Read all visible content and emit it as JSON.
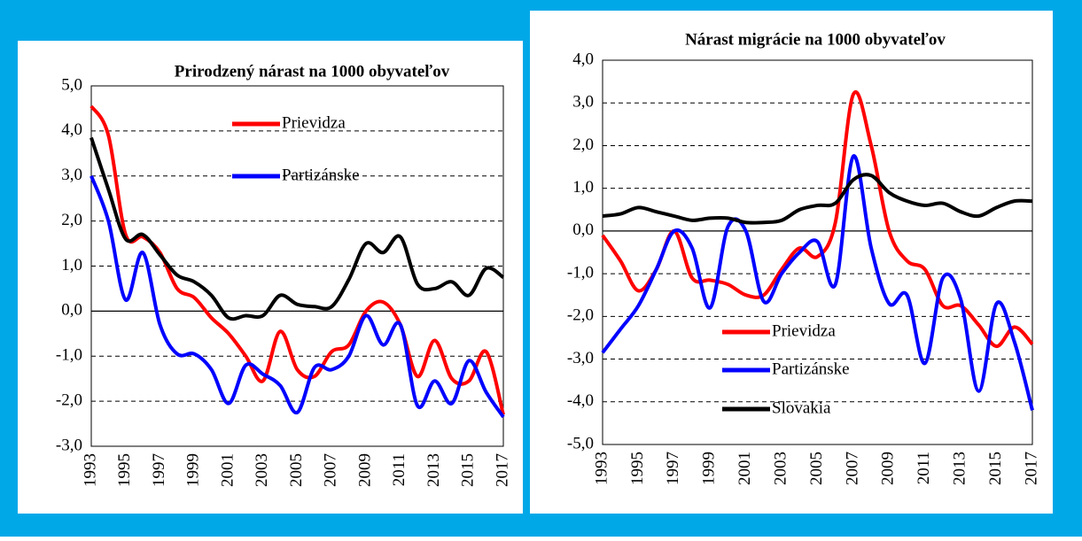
{
  "chart_data": [
    {
      "type": "line",
      "title": "Prirodzený nárast na 1000 obyvateľov",
      "categories": [
        "1993",
        null,
        "1995",
        null,
        "1997",
        null,
        "1999",
        null,
        "2001",
        null,
        "2003",
        null,
        "2005",
        null,
        "2007",
        null,
        "2009",
        null,
        "2011",
        null,
        "2013",
        null,
        "2015",
        null,
        "2017"
      ],
      "series": [
        {
          "name": "Prievidza",
          "color": "#ff0000",
          "values": [
            4.55,
            3.9,
            1.7,
            1.65,
            1.3,
            0.5,
            0.3,
            -0.15,
            -0.5,
            -1.0,
            -1.55,
            -0.45,
            -1.3,
            -1.45,
            -0.9,
            -0.75,
            0.0,
            0.2,
            -0.3,
            -1.45,
            -0.65,
            -1.5,
            -1.55,
            -0.9,
            -2.3
          ]
        },
        {
          "name": "Partizánske",
          "color": "#0000ff",
          "values": [
            3.0,
            2.0,
            0.25,
            1.3,
            -0.3,
            -0.95,
            -0.95,
            -1.3,
            -2.05,
            -1.2,
            -1.4,
            -1.65,
            -2.25,
            -1.25,
            -1.3,
            -1.0,
            -0.1,
            -0.75,
            -0.3,
            -2.1,
            -1.55,
            -2.05,
            -1.1,
            -1.8,
            -2.35
          ]
        },
        {
          "color": "#000000",
          "values": [
            3.85,
            2.7,
            1.6,
            1.7,
            1.25,
            0.8,
            0.65,
            0.35,
            -0.15,
            -0.1,
            -0.1,
            0.35,
            0.15,
            0.1,
            0.1,
            0.7,
            1.5,
            1.3,
            1.65,
            0.6,
            0.5,
            0.65,
            0.35,
            0.95,
            0.75
          ]
        }
      ],
      "ylim": [
        -3,
        5
      ],
      "yticks": [
        {
          "value": -3,
          "label": "-3,0"
        },
        {
          "value": -2,
          "label": "-2,0"
        },
        {
          "value": -1,
          "label": "-1,0"
        },
        {
          "value": 0,
          "label": "0,0"
        },
        {
          "value": 1,
          "label": "1,0"
        },
        {
          "value": 2,
          "label": "2,0"
        },
        {
          "value": 3,
          "label": "3,0"
        },
        {
          "value": 4,
          "label": "4,0"
        },
        {
          "value": 5,
          "label": "5,0"
        }
      ],
      "grid": true
    },
    {
      "type": "line",
      "title": "Nárast migrácie na 1000 obyvateľov",
      "categories": [
        "1993",
        null,
        "1995",
        null,
        "1997",
        null,
        "1999",
        null,
        "2001",
        null,
        "2003",
        null,
        "2005",
        null,
        "2007",
        null,
        "2009",
        null,
        "2011",
        null,
        "2013",
        null,
        "2015",
        null,
        "2017"
      ],
      "series": [
        {
          "name": "Prievidza",
          "color": "#ff0000",
          "values": [
            -0.1,
            -0.7,
            -1.4,
            -0.9,
            0.0,
            -1.1,
            -1.15,
            -1.25,
            -1.5,
            -1.5,
            -0.9,
            -0.4,
            -0.6,
            0.2,
            3.2,
            2.0,
            0.0,
            -0.7,
            -0.9,
            -1.75,
            -1.75,
            -2.2,
            -2.7,
            -2.25,
            -2.65
          ]
        },
        {
          "name": "Partizánske",
          "color": "#0000ff",
          "values": [
            -2.85,
            -2.3,
            -1.75,
            -0.9,
            0.0,
            -0.4,
            -1.8,
            0.1,
            0.0,
            -1.65,
            -1.0,
            -0.5,
            -0.25,
            -1.25,
            1.75,
            -0.4,
            -1.7,
            -1.5,
            -3.1,
            -1.1,
            -1.6,
            -3.75,
            -1.7,
            -2.6,
            -4.2
          ]
        },
        {
          "name": "Slovakia",
          "color": "#000000",
          "values": [
            0.35,
            0.4,
            0.55,
            0.45,
            0.35,
            0.25,
            0.3,
            0.3,
            0.2,
            0.2,
            0.25,
            0.5,
            0.6,
            0.65,
            1.2,
            1.3,
            0.9,
            0.7,
            0.6,
            0.65,
            0.45,
            0.35,
            0.55,
            0.7,
            0.7
          ]
        }
      ],
      "ylim": [
        -5,
        4
      ],
      "yticks": [
        {
          "value": -5,
          "label": "-5,0"
        },
        {
          "value": -4,
          "label": "-4,0"
        },
        {
          "value": -3,
          "label": "-3,0"
        },
        {
          "value": -2,
          "label": "-2,0"
        },
        {
          "value": -1,
          "label": "-1,0"
        },
        {
          "value": 0,
          "label": "0,0"
        },
        {
          "value": 1,
          "label": "1,0"
        },
        {
          "value": 2,
          "label": "2,0"
        },
        {
          "value": 3,
          "label": "3,0"
        },
        {
          "value": 4,
          "label": "4,0"
        }
      ],
      "grid": true
    }
  ]
}
